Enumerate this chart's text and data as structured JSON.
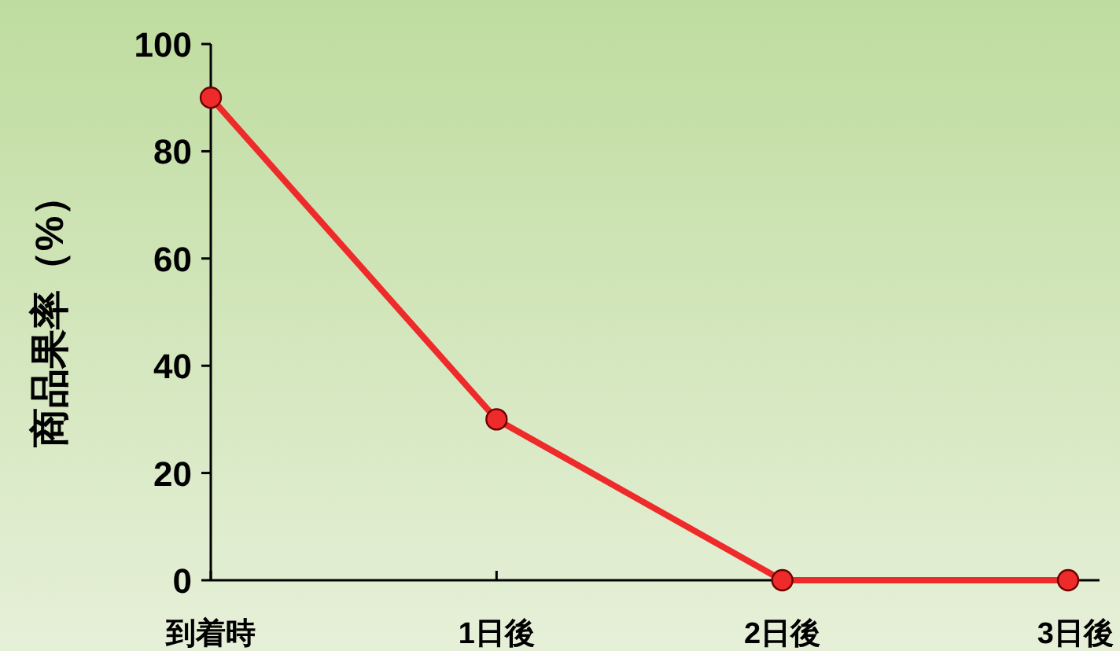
{
  "chart_data": {
    "type": "line",
    "ylabel": "商品果率（%）",
    "categories": [
      "到着時",
      "1日後",
      "2日後",
      "3日後"
    ],
    "series": [
      {
        "color": "#ee2a2a",
        "values": [
          90,
          30,
          0,
          0
        ]
      }
    ],
    "ylim": [
      0,
      100
    ],
    "yticks": [
      0,
      20,
      40,
      60,
      80,
      100
    ],
    "marker": "circle",
    "line_style": "solid",
    "grid": false
  }
}
